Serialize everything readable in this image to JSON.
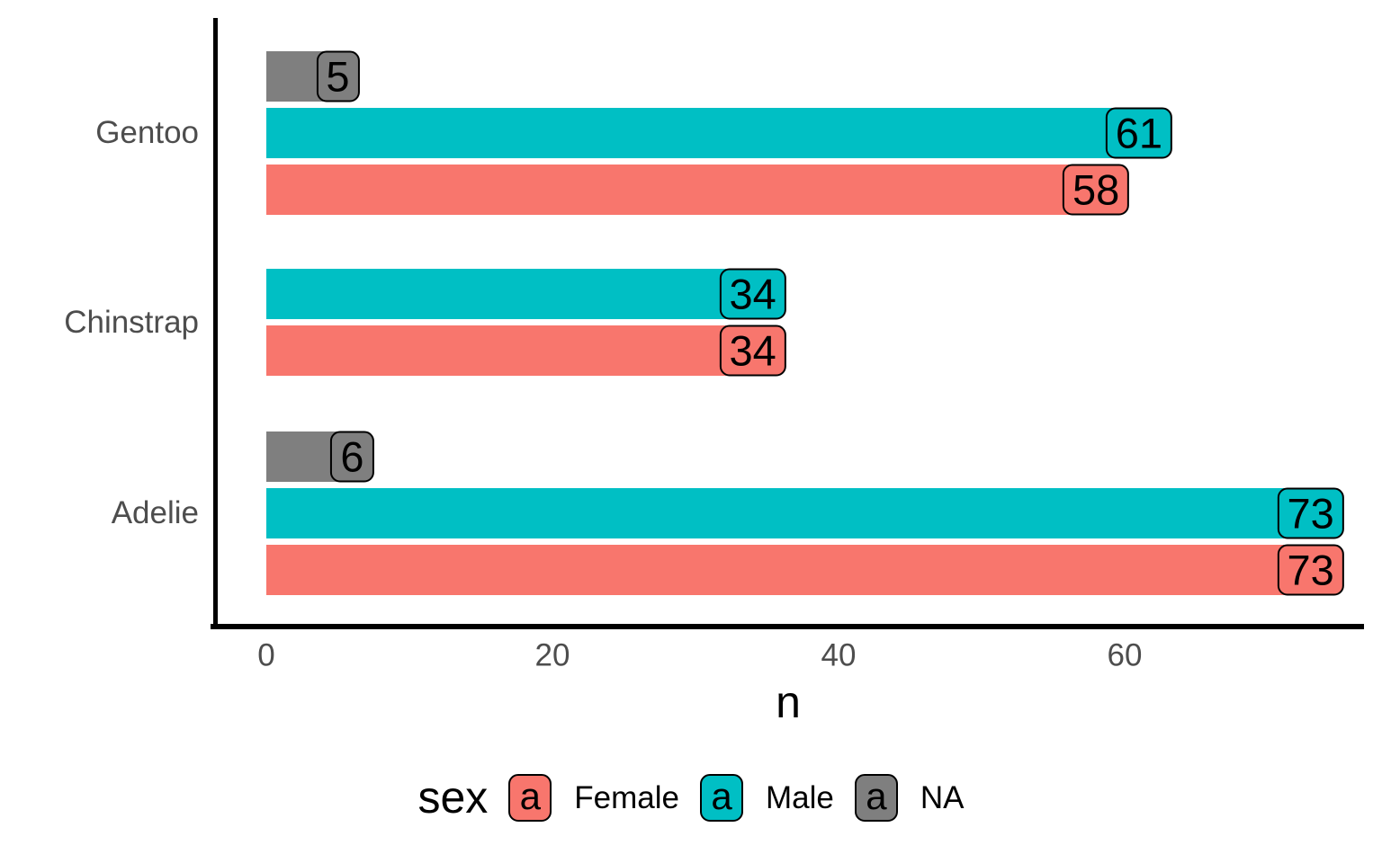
{
  "chart_data": {
    "type": "bar",
    "orientation": "horizontal",
    "title": "",
    "xlabel": "n",
    "ylabel": "",
    "legend_title": "sex",
    "legend_position": "bottom",
    "grid": false,
    "x_ticks": [
      0,
      20,
      40,
      60
    ],
    "xlim": [
      0,
      77
    ],
    "categories": [
      "Gentoo",
      "Chinstrap",
      "Adelie"
    ],
    "series": [
      {
        "name": "Female",
        "color": "#F8766D",
        "values": [
          58,
          34,
          73
        ]
      },
      {
        "name": "Male",
        "color": "#00BFC4",
        "values": [
          61,
          34,
          73
        ]
      },
      {
        "name": "NA",
        "color": "#7F7F7F",
        "values": [
          5,
          null,
          6
        ]
      }
    ],
    "groups": [
      {
        "category": "Gentoo",
        "bars": [
          {
            "sex": "NA",
            "value": 5
          },
          {
            "sex": "Male",
            "value": 61
          },
          {
            "sex": "Female",
            "value": 58
          }
        ]
      },
      {
        "category": "Chinstrap",
        "bars": [
          {
            "sex": "Male",
            "value": 34
          },
          {
            "sex": "Female",
            "value": 34
          }
        ]
      },
      {
        "category": "Adelie",
        "bars": [
          {
            "sex": "NA",
            "value": 6
          },
          {
            "sex": "Male",
            "value": 73
          },
          {
            "sex": "Female",
            "value": 73
          }
        ]
      }
    ],
    "legend_items": [
      {
        "label": "Female",
        "color": "#F8766D",
        "key_glyph": "a"
      },
      {
        "label": "Male",
        "color": "#00BFC4",
        "key_glyph": "a"
      },
      {
        "label": "NA",
        "color": "#7F7F7F",
        "key_glyph": "a"
      }
    ],
    "colors": {
      "Female": "#F8766D",
      "Male": "#00BFC4",
      "NA": "#7F7F7F",
      "axis_text": "#4D4D4D",
      "axis_line": "#000000",
      "label_border": "#000000",
      "text": "#000000"
    },
    "bar_value_labels": "rounded boxes at bar ends"
  }
}
